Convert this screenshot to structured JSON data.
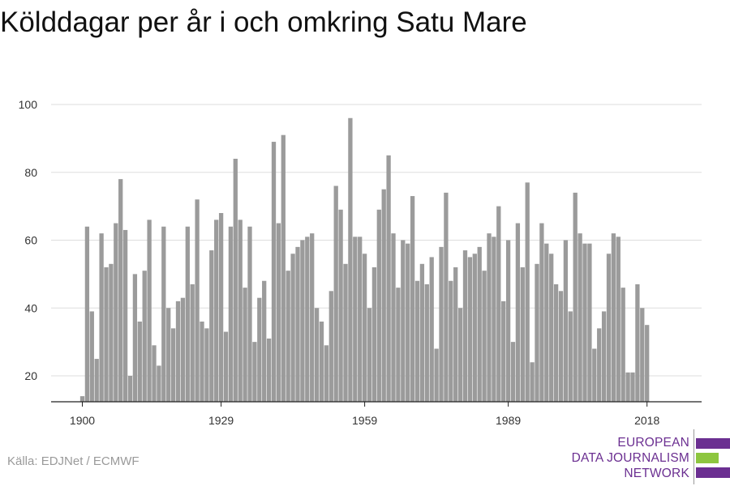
{
  "header": {
    "title": "Kölddagar per år i och omkring Satu Mare"
  },
  "footer": {
    "source": "Källa: EDJNet / ECMWF"
  },
  "logo": {
    "lines": [
      "EUROPEAN",
      "DATA JOURNALISM",
      "NETWORK"
    ],
    "colors": {
      "text": "#6b2f91",
      "purple": "#6b2f91",
      "green": "#8dc63f"
    }
  },
  "chart_data": {
    "type": "bar",
    "title": "Kölddagar per år i och omkring Satu Mare",
    "xlabel": "",
    "ylabel": "",
    "x_start": 1900,
    "x_end": 2018,
    "x": [
      1900,
      1901,
      1902,
      1903,
      1904,
      1905,
      1906,
      1907,
      1908,
      1909,
      1910,
      1911,
      1912,
      1913,
      1914,
      1915,
      1916,
      1917,
      1918,
      1919,
      1920,
      1921,
      1922,
      1923,
      1924,
      1925,
      1926,
      1927,
      1928,
      1929,
      1930,
      1931,
      1932,
      1933,
      1934,
      1935,
      1936,
      1937,
      1938,
      1939,
      1940,
      1941,
      1942,
      1943,
      1944,
      1945,
      1946,
      1947,
      1948,
      1949,
      1950,
      1951,
      1952,
      1953,
      1954,
      1955,
      1956,
      1957,
      1958,
      1959,
      1960,
      1961,
      1962,
      1963,
      1964,
      1965,
      1966,
      1967,
      1968,
      1969,
      1970,
      1971,
      1972,
      1973,
      1974,
      1975,
      1976,
      1977,
      1978,
      1979,
      1980,
      1981,
      1982,
      1983,
      1984,
      1985,
      1986,
      1987,
      1988,
      1989,
      1990,
      1991,
      1992,
      1993,
      1994,
      1995,
      1996,
      1997,
      1998,
      1999,
      2000,
      2001,
      2002,
      2003,
      2004,
      2005,
      2006,
      2007,
      2008,
      2009,
      2010,
      2011,
      2012,
      2013,
      2014,
      2015,
      2016,
      2017,
      2018
    ],
    "values": [
      14,
      64,
      39,
      25,
      62,
      52,
      53,
      65,
      78,
      63,
      20,
      50,
      36,
      51,
      66,
      29,
      23,
      64,
      40,
      34,
      42,
      43,
      64,
      47,
      72,
      36,
      34,
      57,
      66,
      68,
      33,
      64,
      84,
      66,
      46,
      64,
      30,
      43,
      48,
      31,
      89,
      65,
      91,
      51,
      56,
      58,
      60,
      61,
      62,
      40,
      36,
      29,
      45,
      76,
      69,
      53,
      96,
      61,
      61,
      56,
      40,
      52,
      69,
      75,
      85,
      62,
      46,
      60,
      59,
      73,
      48,
      53,
      47,
      55,
      28,
      58,
      74,
      48,
      52,
      40,
      57,
      55,
      56,
      58,
      51,
      62,
      61,
      70,
      42,
      60,
      30,
      65,
      52,
      77,
      24,
      53,
      65,
      59,
      56,
      47,
      45,
      60,
      39,
      74,
      62,
      59,
      59,
      28,
      34,
      39,
      56,
      62,
      61,
      46,
      21,
      21,
      47,
      40,
      35
    ],
    "yticks": [
      20,
      40,
      60,
      80,
      100
    ],
    "xticks": [
      1900,
      1929,
      1959,
      1989,
      2018
    ],
    "ylim": [
      12,
      100
    ],
    "grid": true,
    "legend": "none",
    "colors": {
      "bar": "#9b9b9b",
      "grid": "#dddddd",
      "axis": "#222222"
    }
  }
}
